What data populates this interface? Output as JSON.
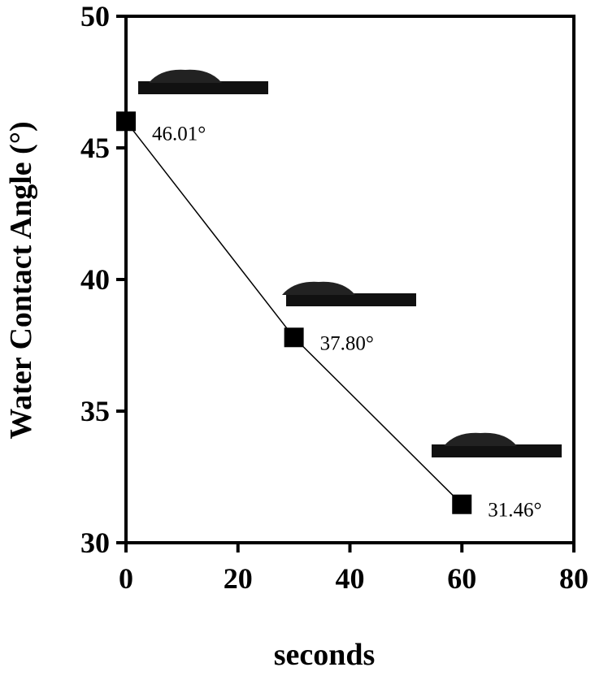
{
  "chart_data": {
    "type": "line",
    "title": "",
    "xlabel": "seconds",
    "ylabel": "Water Contact Angle (°)",
    "xlim": [
      0,
      80
    ],
    "ylim": [
      30,
      50
    ],
    "x_ticks": [
      0,
      20,
      40,
      60,
      80
    ],
    "y_ticks": [
      30,
      35,
      40,
      45,
      50
    ],
    "grid": false,
    "legend": "none",
    "series": [
      {
        "marker": "square",
        "color": "#000000",
        "x": [
          0,
          30,
          60
        ],
        "y": [
          46.01,
          37.8,
          31.46
        ],
        "labels": [
          "46.01°",
          "37.80°",
          "31.46°"
        ]
      }
    ],
    "insets": [
      "water-droplet-image",
      "water-droplet-image",
      "water-droplet-image"
    ]
  }
}
